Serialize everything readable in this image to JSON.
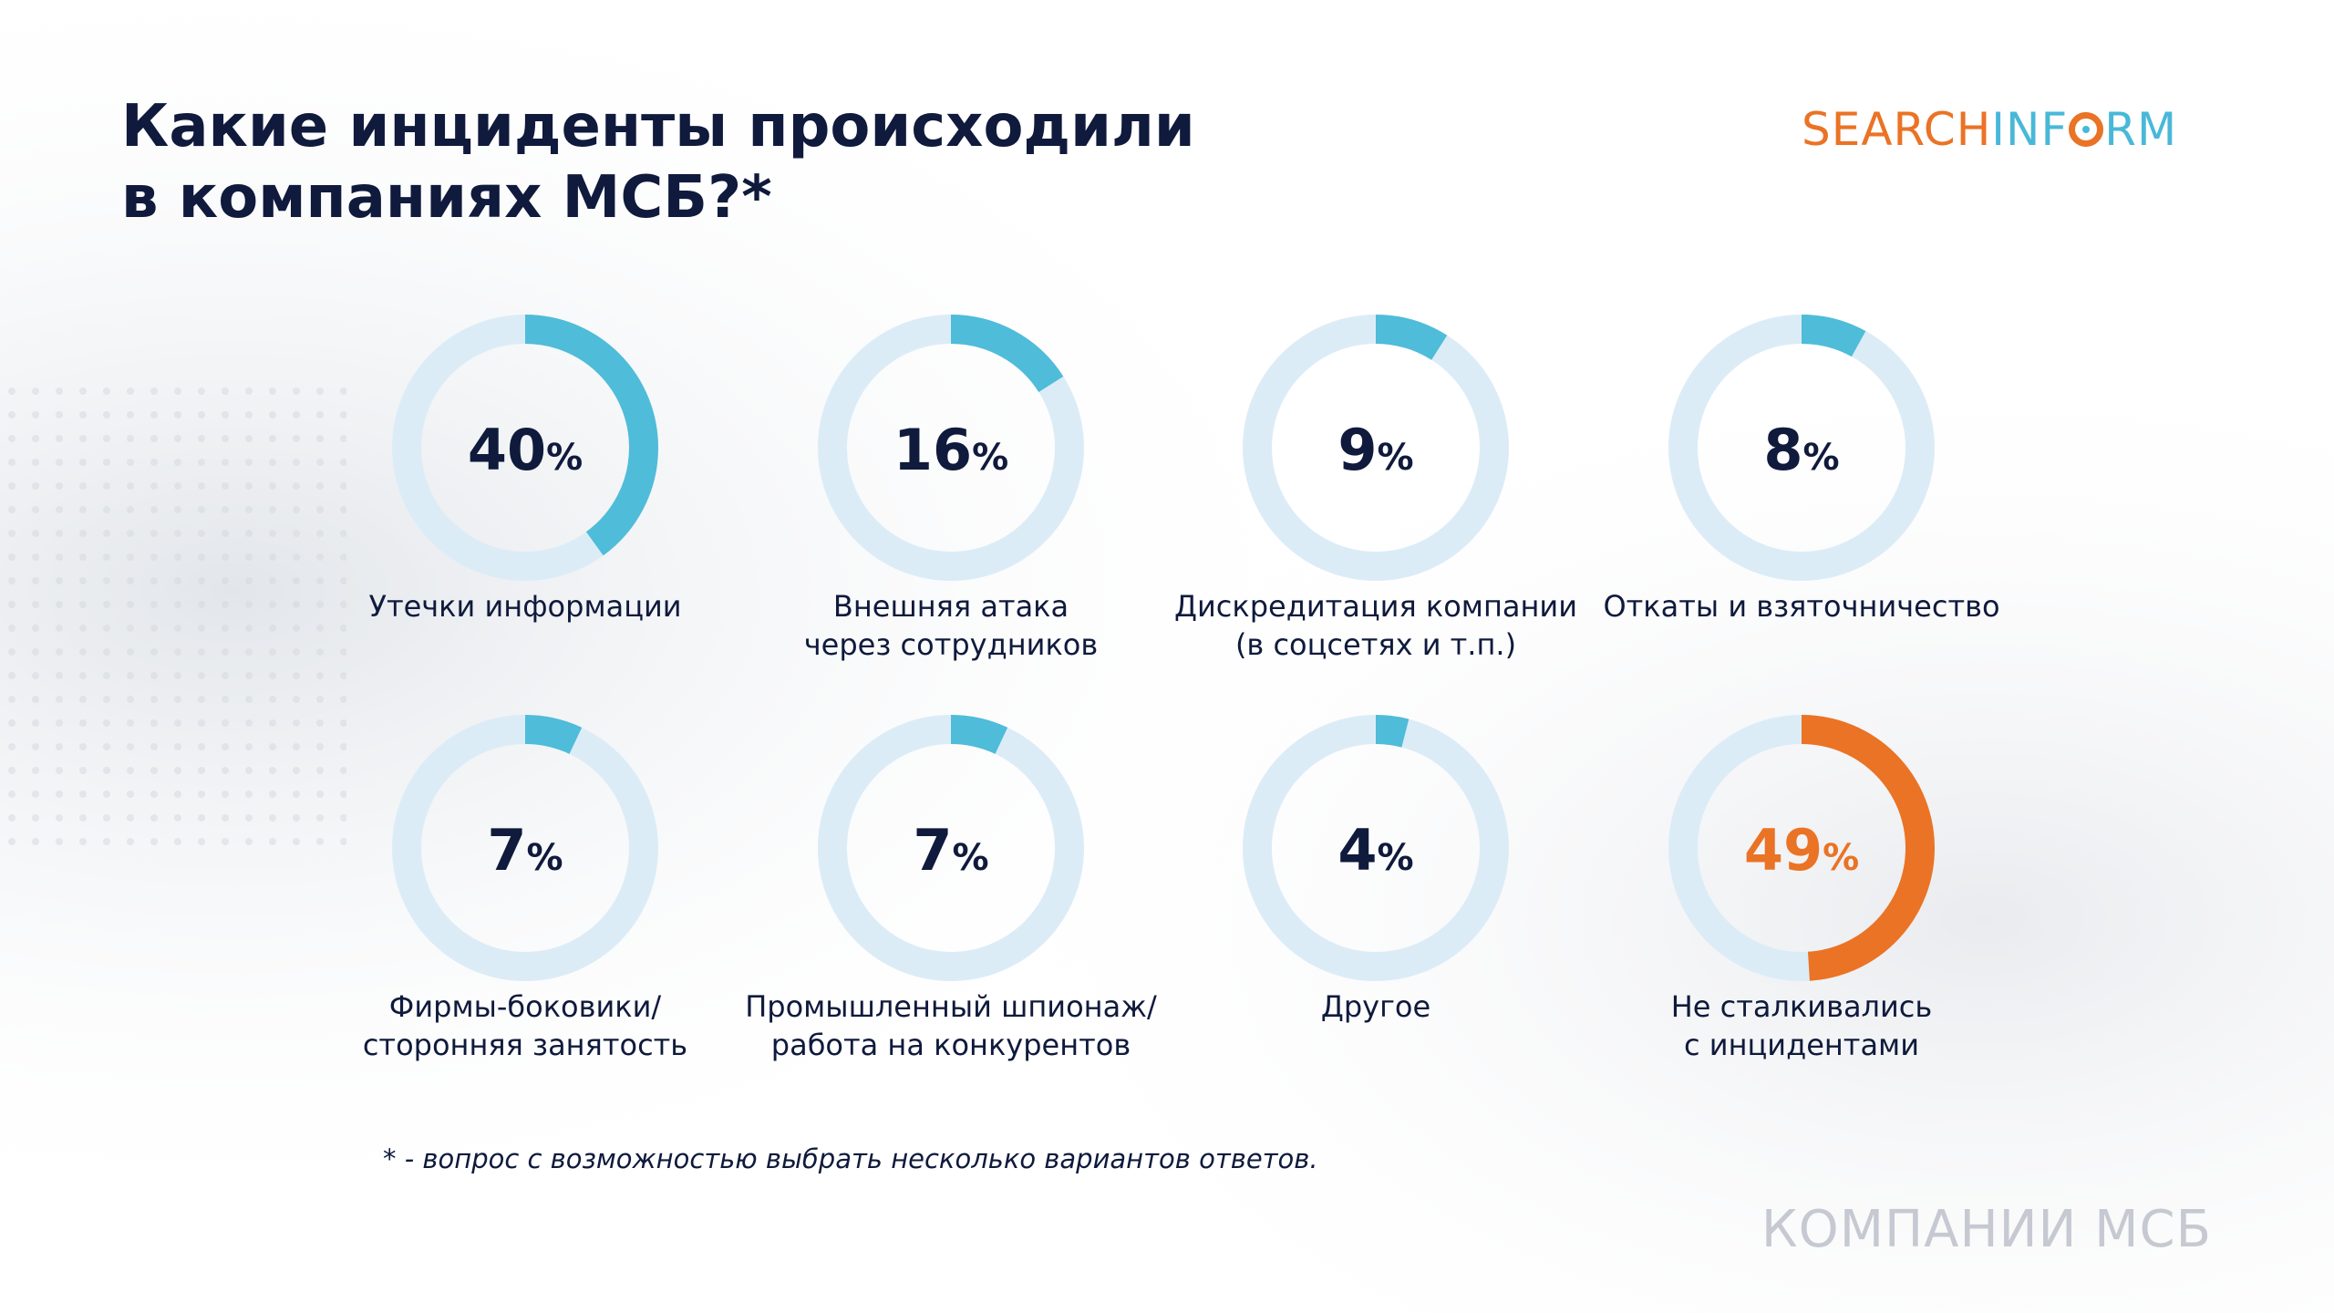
{
  "title": [
    "Какие инциденты происходили",
    "в компаниях МСБ?*"
  ],
  "logo": {
    "part1": "SEARCH",
    "part2": "INF",
    "part3": "RM"
  },
  "footnote": "* - вопрос с возможностью выбрать несколько вариантов ответов.",
  "section_label": "КОМПАНИИ МСБ",
  "colors": {
    "title": "#0f1a3c",
    "accent_blue": "#4fbcd9",
    "accent_orange": "#ea7325",
    "track": "#dcecf7"
  },
  "chart_data": {
    "type": "pie",
    "unit": "%",
    "items": [
      {
        "value": 40,
        "label": [
          "Утечки информации"
        ],
        "highlight": false
      },
      {
        "value": 16,
        "label": [
          "Внешняя атака",
          "через сотрудников"
        ],
        "highlight": false
      },
      {
        "value": 9,
        "label": [
          "Дискредитация компании",
          "(в соцсетях и т.п.)"
        ],
        "highlight": false
      },
      {
        "value": 8,
        "label": [
          "Откаты и взяточничество"
        ],
        "highlight": false
      },
      {
        "value": 7,
        "label": [
          "Фирмы-боковики/",
          "сторонняя занятость"
        ],
        "highlight": false
      },
      {
        "value": 7,
        "label": [
          "Промышленный шпионаж/",
          "работа на конкурентов"
        ],
        "highlight": false
      },
      {
        "value": 4,
        "label": [
          "Другое"
        ],
        "highlight": false
      },
      {
        "value": 49,
        "label": [
          "Не сталкивались",
          "с инцидентами"
        ],
        "highlight": true
      }
    ]
  }
}
